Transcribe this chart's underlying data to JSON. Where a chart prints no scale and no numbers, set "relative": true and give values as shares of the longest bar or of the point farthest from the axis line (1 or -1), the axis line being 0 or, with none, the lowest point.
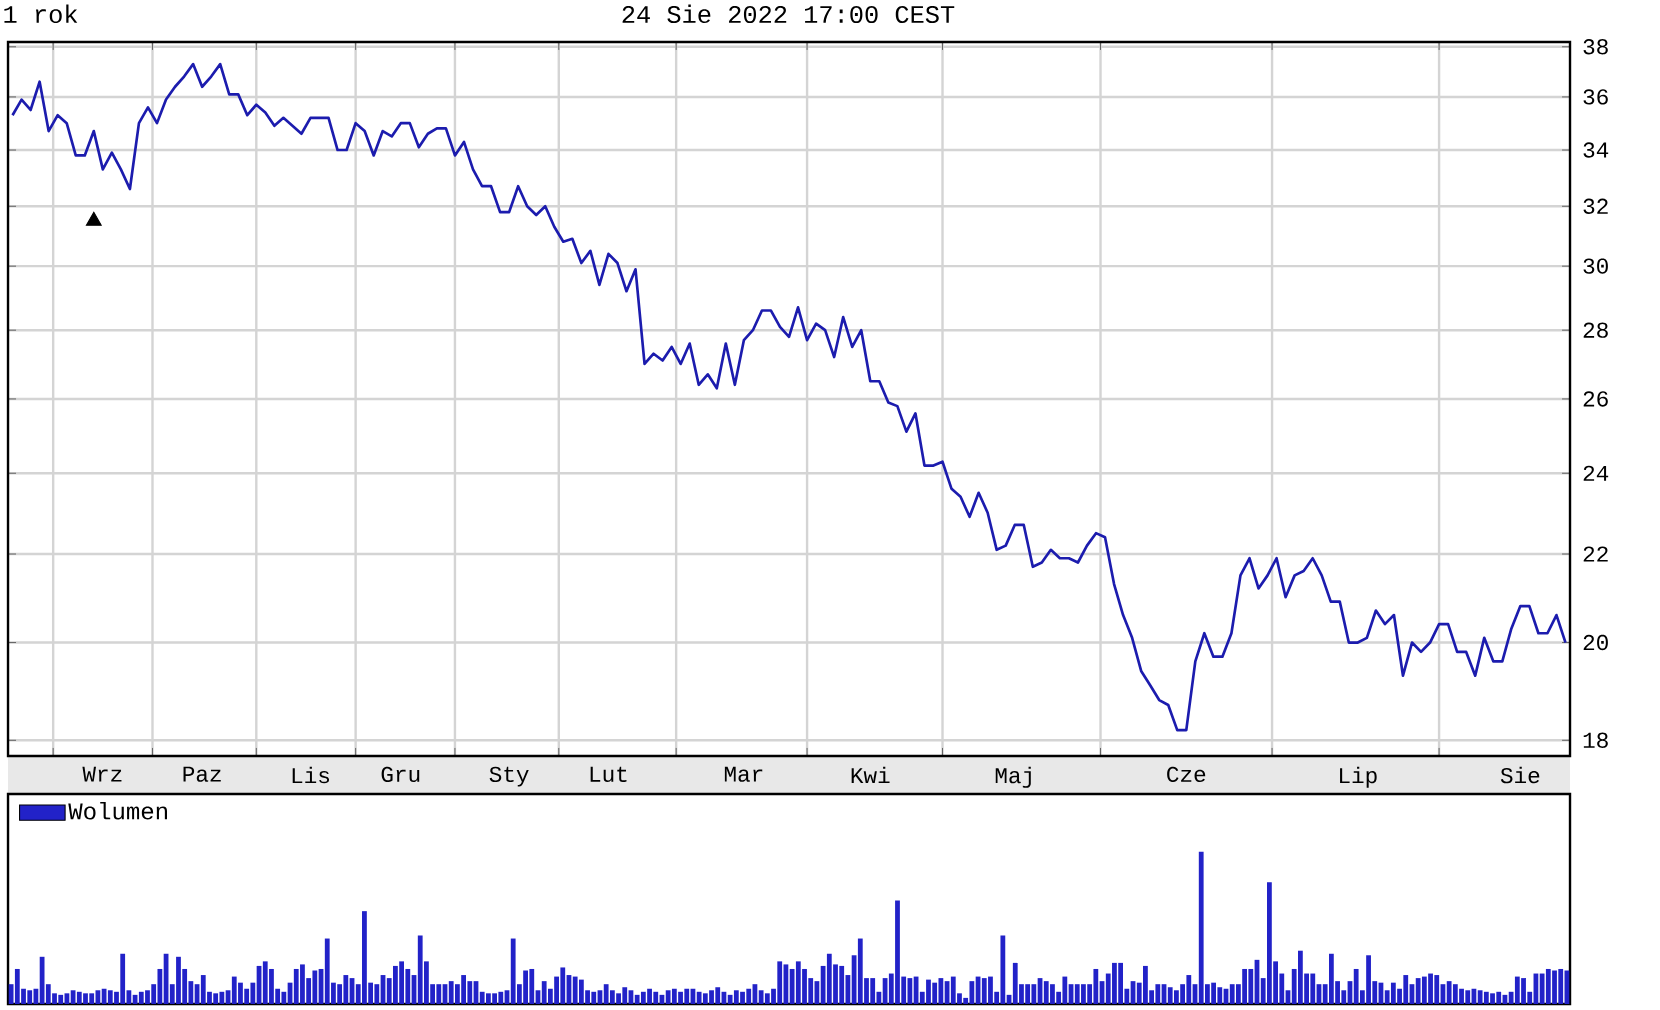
{
  "chart_data": [
    {
      "type": "line",
      "title": "1 rok",
      "subtitle": "24 Sie 2022 17:00 CEST",
      "categories": [
        null,
        null,
        null,
        null,
        null,
        null,
        null,
        null,
        null,
        null,
        "Wrz",
        null,
        null,
        null,
        null,
        null,
        null,
        null,
        null,
        null,
        null,
        "Paz",
        null,
        null,
        null,
        null,
        null,
        null,
        null,
        null,
        null,
        null,
        null,
        "Lis",
        null,
        null,
        null,
        null,
        null,
        null,
        null,
        null,
        null,
        "Gru",
        null,
        null,
        null,
        null,
        null,
        null,
        null,
        null,
        null,
        null,
        null,
        "Sty",
        null,
        null,
        null,
        null,
        null,
        null,
        null,
        null,
        null,
        null,
        "Lut",
        null,
        null,
        null,
        null,
        null,
        null,
        null,
        null,
        null,
        null,
        null,
        null,
        null,
        null,
        "Mar",
        null,
        null,
        null,
        null,
        null,
        null,
        null,
        null,
        null,
        null,
        null,
        null,
        null,
        "Kwi",
        null,
        null,
        null,
        null,
        null,
        null,
        null,
        null,
        null,
        null,
        null,
        null,
        null,
        null,
        null,
        "Maj",
        null,
        null,
        null,
        null,
        null,
        null,
        null,
        null,
        null,
        null,
        null,
        null,
        null,
        null,
        null,
        null,
        null,
        null,
        "Cze",
        null,
        null,
        null,
        null,
        null,
        null,
        null,
        null,
        null,
        null,
        null,
        null,
        null,
        null,
        null,
        null,
        null,
        null,
        "Lip",
        null,
        null,
        null,
        null,
        null,
        null,
        null,
        null,
        null,
        null,
        null,
        null,
        null,
        null,
        null,
        null,
        null,
        "Sie",
        null,
        null,
        null,
        null,
        null
      ],
      "series": [
        {
          "color": "#1c1cae",
          "values": [
            35.3,
            35.9,
            35.5,
            36.6,
            34.7,
            35.3,
            35.0,
            33.8,
            33.8,
            34.7,
            33.3,
            33.9,
            33.3,
            32.6,
            35.0,
            35.6,
            35.0,
            35.9,
            36.4,
            36.8,
            37.3,
            36.4,
            36.8,
            37.3,
            36.1,
            36.1,
            35.3,
            35.7,
            35.4,
            34.9,
            35.2,
            34.9,
            34.6,
            35.2,
            35.2,
            35.2,
            34.0,
            34.0,
            35.0,
            34.7,
            33.8,
            34.7,
            34.5,
            35.0,
            35.0,
            34.1,
            34.6,
            34.8,
            34.8,
            33.8,
            34.3,
            33.3,
            32.7,
            32.7,
            31.8,
            31.8,
            32.7,
            32.0,
            31.7,
            32.0,
            31.3,
            30.8,
            30.9,
            30.1,
            30.5,
            29.4,
            30.4,
            30.1,
            29.2,
            29.9,
            27.0,
            27.3,
            27.1,
            27.5,
            27.0,
            27.6,
            26.4,
            26.7,
            26.3,
            27.6,
            26.4,
            27.7,
            28.0,
            28.6,
            28.6,
            28.1,
            27.8,
            28.7,
            27.7,
            28.2,
            28.0,
            27.2,
            28.4,
            27.5,
            28.0,
            26.5,
            26.5,
            25.9,
            25.8,
            25.1,
            25.6,
            24.2,
            24.2,
            24.3,
            23.6,
            23.4,
            22.9,
            23.5,
            23.0,
            22.1,
            22.2,
            22.7,
            22.7,
            21.7,
            21.8,
            22.1,
            21.9,
            21.9,
            21.8,
            22.2,
            22.5,
            22.4,
            21.3,
            20.6,
            20.1,
            19.4,
            19.1,
            18.8,
            18.7,
            18.2,
            18.2,
            19.6,
            20.2,
            19.7,
            19.7,
            20.2,
            21.5,
            21.9,
            21.2,
            21.5,
            21.9,
            21.0,
            21.5,
            21.6,
            21.9,
            21.5,
            20.9,
            20.9,
            20.0,
            20.0,
            20.1,
            20.7,
            20.4,
            20.6,
            19.3,
            20.0,
            19.8,
            20.0,
            20.4,
            20.4,
            19.8,
            19.8,
            19.3,
            20.1,
            19.6,
            19.6,
            20.3,
            20.8,
            20.8,
            20.2,
            20.2,
            20.6,
            20.0
          ]
        },
        {
          "type": "scatter",
          "marker": "triangle",
          "color": "#000000",
          "values": [
            null,
            null,
            null,
            null,
            null,
            null,
            null,
            null,
            null,
            31.5,
            null,
            null,
            null,
            null,
            null,
            null,
            null,
            null,
            null,
            null,
            null,
            null,
            null,
            null,
            null,
            null,
            null,
            null,
            null,
            null,
            null,
            null,
            null,
            null,
            null,
            null,
            null,
            null,
            null,
            null,
            null,
            null,
            null,
            null,
            null,
            null,
            null,
            null,
            null,
            null,
            null,
            null,
            null,
            null,
            null,
            null,
            null,
            null,
            null,
            null,
            null,
            null,
            null,
            null,
            null,
            null,
            null,
            null,
            null,
            null,
            null,
            null,
            null,
            null,
            null,
            null,
            null,
            null,
            null,
            null,
            null,
            null,
            null,
            null,
            null,
            null,
            null,
            null,
            null,
            null,
            null,
            null,
            null,
            null,
            null,
            null,
            null,
            null,
            null,
            null,
            null,
            null,
            null,
            null,
            null,
            null,
            null,
            null,
            null,
            null,
            null,
            null,
            null,
            null,
            null,
            null,
            null,
            null,
            null,
            null,
            null,
            null,
            null,
            null,
            null,
            null,
            null,
            null,
            null,
            null,
            null,
            null,
            null,
            null,
            null,
            null,
            null,
            null,
            null,
            null,
            null,
            null,
            null,
            null,
            null,
            null,
            null,
            null,
            null,
            null,
            null,
            null,
            null,
            null,
            null,
            null,
            null,
            null,
            null,
            null,
            null,
            null,
            null,
            null,
            null,
            null,
            null,
            null,
            null,
            null,
            null,
            null,
            null
          ]
        }
      ],
      "ylim": [
        17.7,
        38.2
      ],
      "log": "y",
      "grid": true,
      "yticks": [
        18,
        20,
        22,
        24,
        26,
        28,
        30,
        32,
        34,
        36,
        38
      ]
    },
    {
      "type": "bar",
      "relative": true,
      "legend": "top left",
      "categories": [
        null,
        null,
        null,
        null,
        null,
        null,
        null,
        null,
        null,
        null,
        null,
        null,
        null,
        null,
        null,
        null,
        null,
        null,
        null,
        null,
        null,
        null,
        null,
        null,
        null,
        null,
        null,
        null,
        null,
        null,
        null,
        null,
        null,
        null,
        null,
        null,
        null,
        null,
        null,
        null,
        null,
        null,
        null,
        null,
        null,
        null,
        null,
        null,
        null,
        null,
        null,
        null,
        null,
        null,
        null,
        null,
        null,
        null,
        null,
        null,
        null,
        null,
        null,
        null,
        null,
        null,
        null,
        null,
        null,
        null,
        null,
        null,
        null,
        null,
        null,
        null,
        null,
        null,
        null,
        null,
        null,
        null,
        null,
        null,
        null,
        null,
        null,
        null,
        null,
        null,
        null,
        null,
        null,
        null,
        null,
        null,
        null,
        null,
        null,
        null,
        null,
        null,
        null,
        null,
        null,
        null,
        null,
        null,
        null,
        null,
        null,
        null,
        null,
        null,
        null,
        null,
        null,
        null,
        null,
        null,
        null,
        null,
        null,
        null,
        null,
        null,
        null,
        null,
        null,
        null,
        null,
        null,
        null,
        null,
        null,
        null,
        null,
        null,
        null,
        null,
        null,
        null,
        null,
        null,
        null,
        null,
        null,
        null,
        null,
        null,
        null,
        null,
        null,
        null,
        null,
        null,
        null,
        null,
        null,
        null,
        null,
        null,
        null,
        null,
        null,
        null,
        null,
        null,
        null,
        null,
        null,
        null,
        null,
        null,
        null,
        null,
        null,
        null,
        null,
        null,
        null,
        null,
        null,
        null,
        null,
        null,
        null,
        null,
        null,
        null,
        null,
        null,
        null,
        null,
        null,
        null,
        null,
        null,
        null,
        null,
        null,
        null,
        null,
        null,
        null,
        null,
        null,
        null,
        null,
        null,
        null,
        null,
        null,
        null,
        null,
        null,
        null,
        null,
        null,
        null,
        null,
        null,
        null,
        null,
        null,
        null,
        null,
        null,
        null,
        null,
        null,
        null,
        null,
        null,
        null,
        null,
        null,
        null,
        null,
        null,
        null,
        null,
        null,
        null,
        null,
        null,
        null,
        null,
        null,
        null,
        null,
        null
      ],
      "series": [
        {
          "name": "Wolumen",
          "color": "#2222c8",
          "values": [
            0.13,
            0.23,
            0.1,
            0.09,
            0.1,
            0.31,
            0.13,
            0.07,
            0.06,
            0.07,
            0.09,
            0.08,
            0.07,
            0.07,
            0.09,
            0.1,
            0.09,
            0.08,
            0.33,
            0.09,
            0.06,
            0.08,
            0.09,
            0.13,
            0.23,
            0.33,
            0.13,
            0.31,
            0.23,
            0.15,
            0.13,
            0.19,
            0.08,
            0.07,
            0.08,
            0.09,
            0.18,
            0.14,
            0.1,
            0.14,
            0.25,
            0.28,
            0.23,
            0.1,
            0.08,
            0.14,
            0.23,
            0.26,
            0.17,
            0.22,
            0.23,
            0.43,
            0.14,
            0.13,
            0.19,
            0.17,
            0.13,
            0.61,
            0.14,
            0.13,
            0.19,
            0.17,
            0.25,
            0.28,
            0.23,
            0.19,
            0.45,
            0.28,
            0.13,
            0.13,
            0.13,
            0.15,
            0.13,
            0.19,
            0.15,
            0.15,
            0.08,
            0.07,
            0.07,
            0.08,
            0.09,
            0.43,
            0.13,
            0.22,
            0.23,
            0.09,
            0.15,
            0.1,
            0.18,
            0.24,
            0.19,
            0.18,
            0.16,
            0.09,
            0.08,
            0.09,
            0.13,
            0.09,
            0.07,
            0.11,
            0.09,
            0.06,
            0.08,
            0.1,
            0.08,
            0.06,
            0.09,
            0.1,
            0.08,
            0.1,
            0.1,
            0.08,
            0.07,
            0.09,
            0.11,
            0.08,
            0.06,
            0.09,
            0.08,
            0.1,
            0.13,
            0.09,
            0.07,
            0.1,
            0.28,
            0.26,
            0.23,
            0.28,
            0.23,
            0.17,
            0.15,
            0.25,
            0.33,
            0.26,
            0.25,
            0.19,
            0.32,
            0.43,
            0.17,
            0.17,
            0.08,
            0.17,
            0.2,
            0.68,
            0.18,
            0.17,
            0.18,
            0.08,
            0.16,
            0.14,
            0.17,
            0.15,
            0.18,
            0.07,
            0.04,
            0.15,
            0.18,
            0.17,
            0.18,
            0.08,
            0.45,
            0.06,
            0.27,
            0.13,
            0.13,
            0.13,
            0.17,
            0.15,
            0.13,
            0.08,
            0.18,
            0.13,
            0.13,
            0.13,
            0.13,
            0.23,
            0.15,
            0.2,
            0.27,
            0.27,
            0.1,
            0.15,
            0.14,
            0.25,
            0.09,
            0.13,
            0.13,
            0.11,
            0.09,
            0.13,
            0.19,
            0.13,
            1.0,
            0.13,
            0.14,
            0.11,
            0.1,
            0.13,
            0.13,
            0.23,
            0.23,
            0.29,
            0.17,
            0.8,
            0.28,
            0.2,
            0.09,
            0.23,
            0.35,
            0.2,
            0.2,
            0.13,
            0.13,
            0.33,
            0.15,
            0.09,
            0.15,
            0.23,
            0.09,
            0.32,
            0.15,
            0.14,
            0.09,
            0.14,
            0.1,
            0.19,
            0.13,
            0.17,
            0.18,
            0.2,
            0.19,
            0.13,
            0.15,
            0.13,
            0.1,
            0.09,
            0.1,
            0.09,
            0.08,
            0.07,
            0.08,
            0.06,
            0.08,
            0.18,
            0.17,
            0.08,
            0.2,
            0.2,
            0.23,
            0.22,
            0.23,
            0.22
          ]
        }
      ]
    }
  ]
}
